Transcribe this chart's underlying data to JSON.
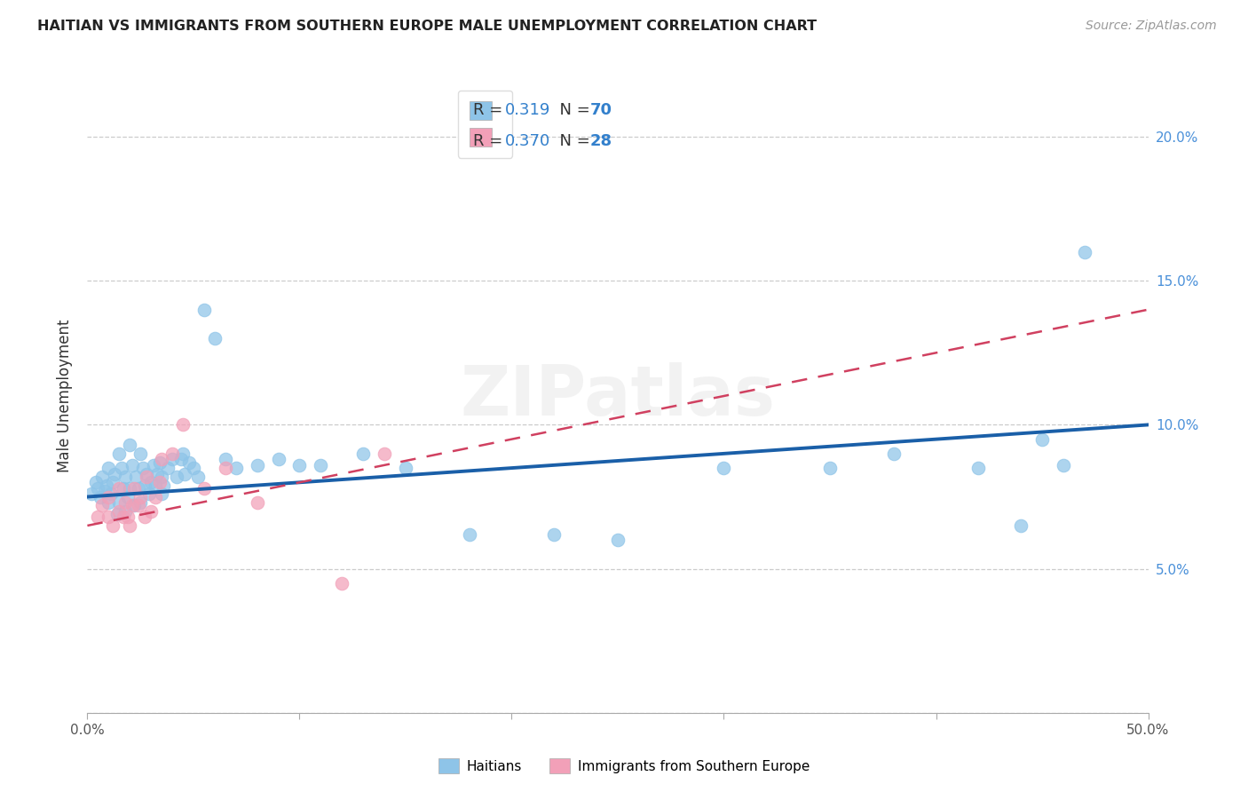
{
  "title": "HAITIAN VS IMMIGRANTS FROM SOUTHERN EUROPE MALE UNEMPLOYMENT CORRELATION CHART",
  "source": "Source: ZipAtlas.com",
  "ylabel": "Male Unemployment",
  "xlim": [
    0.0,
    0.5
  ],
  "ylim": [
    0.0,
    0.22
  ],
  "yticks": [
    0.0,
    0.05,
    0.1,
    0.15,
    0.2
  ],
  "yticks_right": [
    0.05,
    0.1,
    0.15,
    0.2
  ],
  "yticks_right_labels": [
    "5.0%",
    "10.0%",
    "15.0%",
    "20.0%"
  ],
  "xticks": [
    0.0,
    0.1,
    0.2,
    0.3,
    0.4,
    0.5
  ],
  "xtick_labels": [
    "0.0%",
    "",
    "",
    "",
    "",
    "50.0%"
  ],
  "R1": "0.319",
  "N1": 70,
  "R2": "0.370",
  "N2": 28,
  "color1": "#8ec4e8",
  "color2": "#f2a0b8",
  "line_color1": "#1a5fa8",
  "line_color2": "#d04060",
  "watermark": "ZIPatlas",
  "blue_line_x0": 0.0,
  "blue_line_y0": 0.075,
  "blue_line_x1": 0.5,
  "blue_line_y1": 0.1,
  "pink_line_x0": 0.0,
  "pink_line_y0": 0.065,
  "pink_line_x1": 0.5,
  "pink_line_y1": 0.14,
  "haitians_x": [
    0.002,
    0.004,
    0.005,
    0.006,
    0.007,
    0.008,
    0.009,
    0.01,
    0.01,
    0.011,
    0.012,
    0.013,
    0.014,
    0.015,
    0.015,
    0.016,
    0.017,
    0.018,
    0.018,
    0.019,
    0.02,
    0.02,
    0.021,
    0.022,
    0.023,
    0.024,
    0.025,
    0.025,
    0.026,
    0.027,
    0.028,
    0.029,
    0.03,
    0.031,
    0.032,
    0.033,
    0.034,
    0.035,
    0.035,
    0.036,
    0.038,
    0.04,
    0.042,
    0.044,
    0.045,
    0.046,
    0.048,
    0.05,
    0.052,
    0.055,
    0.06,
    0.065,
    0.07,
    0.08,
    0.09,
    0.1,
    0.11,
    0.13,
    0.15,
    0.18,
    0.22,
    0.25,
    0.3,
    0.35,
    0.38,
    0.42,
    0.44,
    0.45,
    0.46,
    0.47
  ],
  "haitians_y": [
    0.076,
    0.08,
    0.078,
    0.075,
    0.082,
    0.077,
    0.079,
    0.085,
    0.073,
    0.076,
    0.08,
    0.083,
    0.069,
    0.09,
    0.073,
    0.085,
    0.078,
    0.082,
    0.07,
    0.075,
    0.078,
    0.093,
    0.086,
    0.072,
    0.082,
    0.078,
    0.073,
    0.09,
    0.085,
    0.079,
    0.083,
    0.076,
    0.08,
    0.086,
    0.079,
    0.083,
    0.087,
    0.082,
    0.076,
    0.079,
    0.085,
    0.088,
    0.082,
    0.088,
    0.09,
    0.083,
    0.087,
    0.085,
    0.082,
    0.14,
    0.13,
    0.088,
    0.085,
    0.086,
    0.088,
    0.086,
    0.086,
    0.09,
    0.085,
    0.062,
    0.062,
    0.06,
    0.085,
    0.085,
    0.09,
    0.085,
    0.065,
    0.095,
    0.086,
    0.16
  ],
  "southern_x": [
    0.005,
    0.007,
    0.01,
    0.01,
    0.012,
    0.015,
    0.015,
    0.017,
    0.018,
    0.019,
    0.02,
    0.021,
    0.022,
    0.024,
    0.025,
    0.027,
    0.028,
    0.03,
    0.032,
    0.034,
    0.035,
    0.04,
    0.045,
    0.055,
    0.065,
    0.08,
    0.12,
    0.14
  ],
  "southern_y": [
    0.068,
    0.072,
    0.068,
    0.075,
    0.065,
    0.07,
    0.078,
    0.068,
    0.073,
    0.068,
    0.065,
    0.072,
    0.078,
    0.072,
    0.075,
    0.068,
    0.082,
    0.07,
    0.075,
    0.08,
    0.088,
    0.09,
    0.1,
    0.078,
    0.085,
    0.073,
    0.045,
    0.09
  ]
}
